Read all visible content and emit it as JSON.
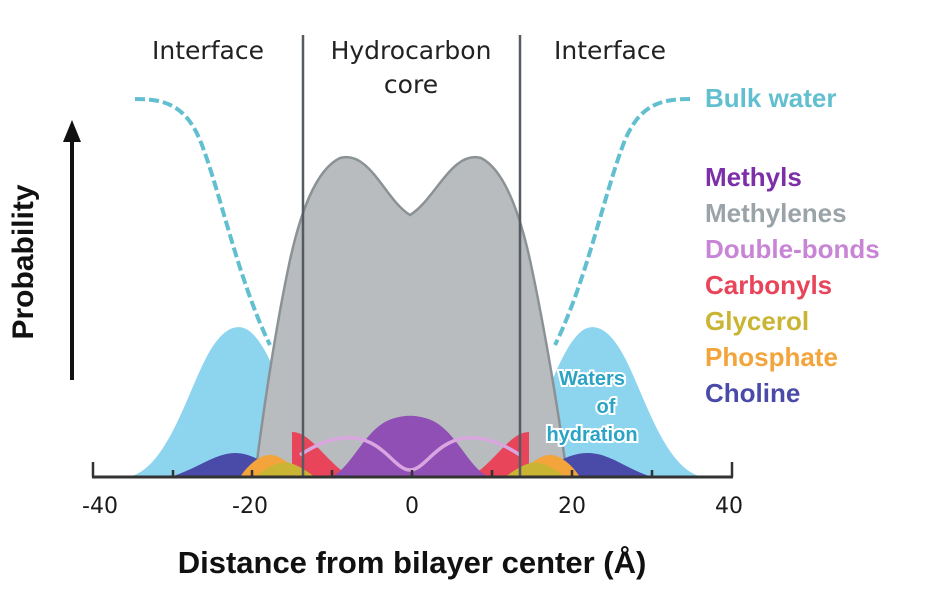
{
  "regions": {
    "left_interface": "Interface",
    "core_line1": "Hydrocarbon",
    "core_line2": "core",
    "right_interface": "Interface"
  },
  "y_axis_label": "Probability",
  "x_axis": {
    "title": "Distance from bilayer center (Å)",
    "ticks": [
      "-40",
      "-20",
      "0",
      "20",
      "40"
    ]
  },
  "bulk_water_label": "Bulk water",
  "hydration_label": [
    "Waters",
    "of",
    "hydration"
  ],
  "legend": [
    {
      "label": "Methyls",
      "color": "#7b2fa8"
    },
    {
      "label": "Methylenes",
      "color": "#9aa3a8"
    },
    {
      "label": "Double-bonds",
      "color": "#c885d6"
    },
    {
      "label": "Carbonyls",
      "color": "#e8455a"
    },
    {
      "label": "Glycerol",
      "color": "#c9b533"
    },
    {
      "label": "Phosphate",
      "color": "#f3a43a"
    },
    {
      "label": "Choline",
      "color": "#4a4aa8"
    }
  ],
  "colors": {
    "bulk_water": "#62bfd0",
    "hydration_water": "#8dd4ef",
    "methylenes_fill": "#b9bcbf",
    "methylenes_stroke": "#8b9296"
  }
}
